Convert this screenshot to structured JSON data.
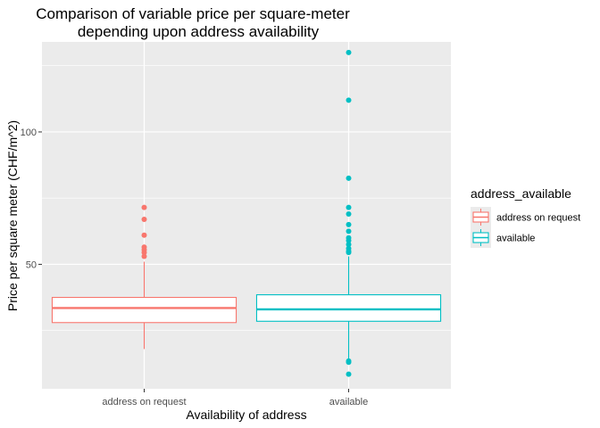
{
  "chart_data": {
    "type": "boxplot",
    "title_lines": [
      "Comparison of variable price per square-meter",
      "depending upon address availability"
    ],
    "xlabel": "Availability of address",
    "ylabel": "Price per square meter (CHF/m^2)",
    "categories": [
      "address on request",
      "available"
    ],
    "ylim": [
      3,
      134
    ],
    "y_ticks": [
      50,
      100
    ],
    "grid": true,
    "legend": {
      "title": "address_available",
      "position": "right",
      "entries": [
        "address on request",
        "available"
      ]
    },
    "colors": [
      "#F8766D",
      "#00BFC4"
    ],
    "boxes": [
      {
        "category": "address on request",
        "whisker_low": 18,
        "q1": 28,
        "median": 33.5,
        "q3": 37.5,
        "whisker_high": 51,
        "outliers": [
          53,
          54.5,
          55.5,
          56.5,
          61,
          67,
          71.5
        ]
      },
      {
        "category": "available",
        "whisker_low": 14,
        "q1": 28.5,
        "median": 33,
        "q3": 38.5,
        "whisker_high": 53,
        "outliers": [
          8.5,
          13,
          13.5,
          54.5,
          55,
          56,
          57.5,
          59,
          60,
          62.5,
          65,
          69,
          71.5,
          82.5,
          112,
          130
        ]
      }
    ]
  }
}
